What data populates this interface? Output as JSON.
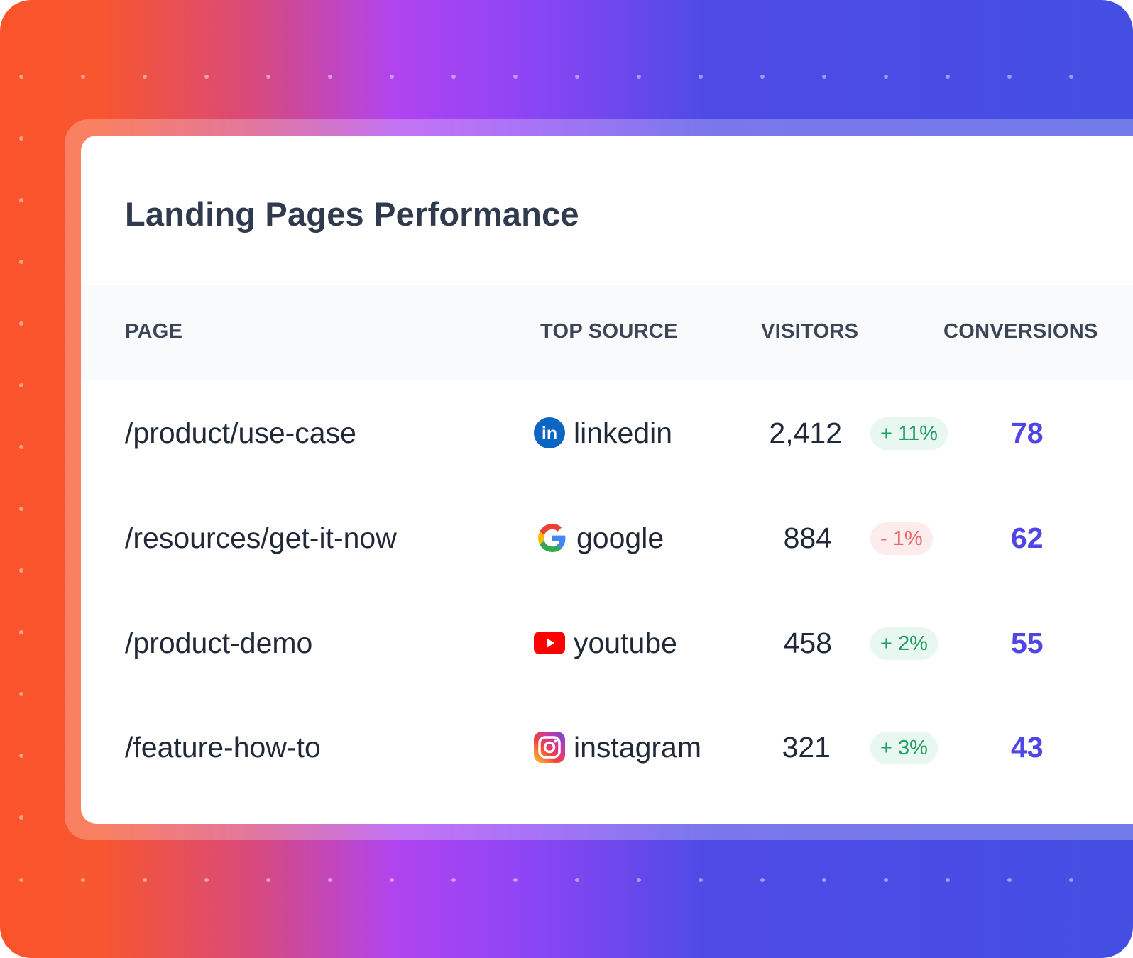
{
  "title": "Landing Pages Performance",
  "columns": {
    "page": "PAGE",
    "source": "TOP SOURCE",
    "visitors": "VISITORS",
    "conversions": "CONVERSIONS"
  },
  "rows": [
    {
      "page": "/product/use-case",
      "source": "linkedin",
      "source_icon": "linkedin-icon",
      "visitors": "2,412",
      "change": "+ 11%",
      "trend": "up",
      "conversions": "78"
    },
    {
      "page": "/resources/get-it-now",
      "source": "google",
      "source_icon": "google-icon",
      "visitors": "884",
      "change": "- 1%",
      "trend": "down",
      "conversions": "62"
    },
    {
      "page": "/product-demo",
      "source": "youtube",
      "source_icon": "youtube-icon",
      "visitors": "458",
      "change": "+ 2%",
      "trend": "up",
      "conversions": "55"
    },
    {
      "page": "/feature-how-to",
      "source": "instagram",
      "source_icon": "instagram-icon",
      "visitors": "321",
      "change": "+ 3%",
      "trend": "up",
      "conversions": "43"
    }
  ],
  "colors": {
    "accent": "#4f46e5",
    "positive": "#1e9e62",
    "negative": "#ea6a6a"
  }
}
